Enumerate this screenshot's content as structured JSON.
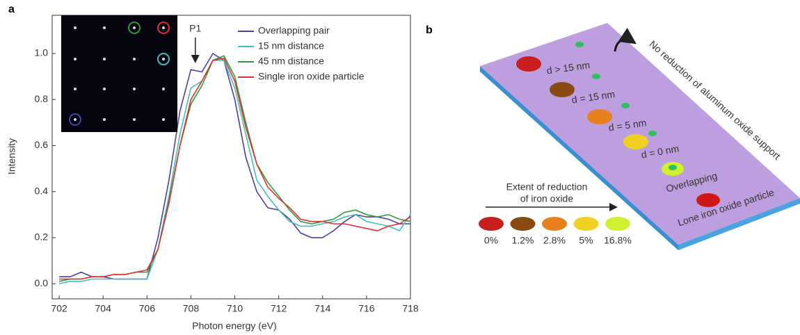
{
  "chart_data": {
    "type": "line",
    "panel_label": "a",
    "xlabel": "Photon energy (eV)",
    "ylabel": "Intensity",
    "annotation": "P1",
    "annotation_x": 708.2,
    "x": [
      702,
      702.5,
      703,
      703.5,
      704,
      704.5,
      705,
      705.5,
      706,
      706.5,
      707,
      707.5,
      708,
      708.5,
      709,
      709.5,
      710,
      710.5,
      711,
      711.5,
      712,
      712.5,
      713,
      713.5,
      714,
      714.5,
      715,
      715.5,
      716,
      716.5,
      717,
      717.5,
      718
    ],
    "series": [
      {
        "name": "Overlapping pair",
        "color": "#4b3fa0",
        "values": [
          0.03,
          0.03,
          0.05,
          0.03,
          0.03,
          0.02,
          0.02,
          0.02,
          0.02,
          0.2,
          0.45,
          0.75,
          0.93,
          0.92,
          1.0,
          0.97,
          0.8,
          0.55,
          0.4,
          0.33,
          0.32,
          0.28,
          0.22,
          0.2,
          0.2,
          0.23,
          0.27,
          0.3,
          0.29,
          0.29,
          0.28,
          0.26,
          0.26
        ]
      },
      {
        "name": "15 nm distance",
        "color": "#3fbfbf",
        "values": [
          0.0,
          0.01,
          0.01,
          0.02,
          0.02,
          0.02,
          0.02,
          0.02,
          0.02,
          0.15,
          0.38,
          0.65,
          0.85,
          0.88,
          0.97,
          0.97,
          0.85,
          0.65,
          0.45,
          0.38,
          0.32,
          0.27,
          0.25,
          0.25,
          0.26,
          0.27,
          0.29,
          0.3,
          0.27,
          0.26,
          0.25,
          0.23,
          0.3
        ]
      },
      {
        "name": "45 nm distance",
        "color": "#2e9a3a",
        "values": [
          0.01,
          0.02,
          0.02,
          0.03,
          0.03,
          0.04,
          0.04,
          0.05,
          0.05,
          0.15,
          0.36,
          0.6,
          0.78,
          0.86,
          0.97,
          0.99,
          0.9,
          0.7,
          0.52,
          0.44,
          0.38,
          0.32,
          0.27,
          0.26,
          0.27,
          0.28,
          0.31,
          0.32,
          0.3,
          0.29,
          0.3,
          0.28,
          0.27
        ]
      },
      {
        "name": "Single iron oxide particle",
        "color": "#e03030",
        "values": [
          0.02,
          0.02,
          0.02,
          0.03,
          0.03,
          0.04,
          0.04,
          0.05,
          0.06,
          0.15,
          0.35,
          0.6,
          0.8,
          0.88,
          0.97,
          0.98,
          0.88,
          0.68,
          0.52,
          0.42,
          0.37,
          0.33,
          0.28,
          0.27,
          0.27,
          0.26,
          0.26,
          0.25,
          0.24,
          0.23,
          0.25,
          0.26,
          0.29
        ]
      }
    ],
    "xlim": [
      701.68,
      718
    ],
    "xticks": [
      702,
      704,
      706,
      708,
      710,
      712,
      714,
      716,
      718
    ],
    "ylim": [
      -0.066,
      1.166
    ],
    "yticks": [
      {
        "value": 0,
        "label": "0.0"
      },
      0.2,
      0.4,
      0.6,
      0.8,
      {
        "value": 1,
        "label": "1.0"
      }
    ]
  },
  "diagram": {
    "panel_label": "b",
    "support_label": "No reduction of aluminum oxide support",
    "pair_labels": [
      "d > 15 nm",
      "d = 15 nm",
      "d = 5 nm",
      "d = 0 nm",
      "Overlapping",
      "Lone iron oxide particle"
    ],
    "scale_title": [
      "Extent of reduction",
      "of iron oxide"
    ],
    "scale": [
      {
        "label": "0%",
        "color": "#c81e1e"
      },
      {
        "label": "1.2%",
        "color": "#8a4b12"
      },
      {
        "label": "2.8%",
        "color": "#e8801e"
      },
      {
        "label": "5%",
        "color": "#f0d020"
      },
      {
        "label": "16.8%",
        "color": "#d0f030"
      }
    ]
  }
}
